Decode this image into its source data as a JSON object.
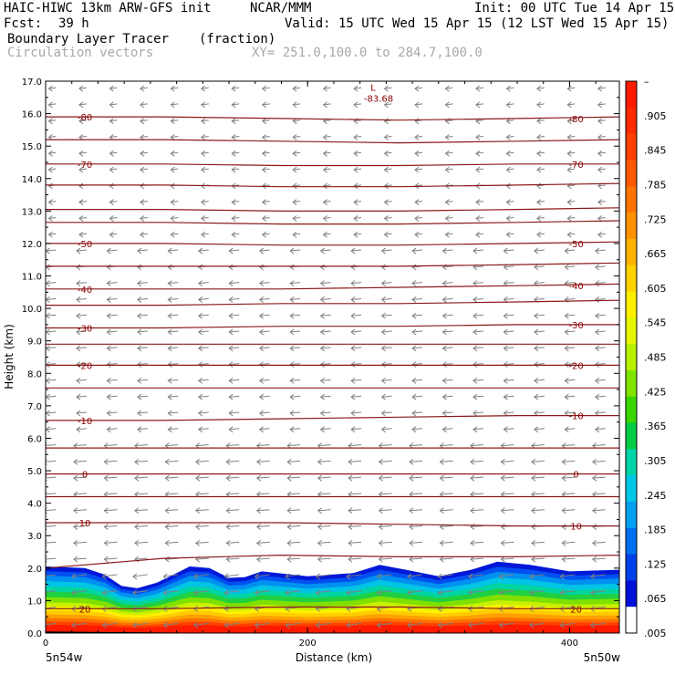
{
  "header": {
    "model": "HAIC-HIWC 13km ARW-GFS init",
    "org": "NCAR/MMM",
    "init": "Init: 00 UTC Tue 14 Apr 15",
    "fcst_label": "Fcst:",
    "fcst_value": "39 h",
    "valid": "Valid: 15 UTC Wed 15 Apr 15 (12 LST Wed 15 Apr 15)",
    "field": "Boundary Layer Tracer",
    "units": "(fraction)",
    "vectors": "Circulation vectors",
    "section": "XY= 251.0,100.0 to 284.7,100.0"
  },
  "chart_data": {
    "type": "heatmap",
    "xlabel": "Distance (km)",
    "ylabel": "Height (km)",
    "xlim": [
      0,
      438
    ],
    "ylim": [
      0.0,
      17.0
    ],
    "x_ticks": [
      0,
      200,
      400
    ],
    "y_ticks": [
      "0.0",
      "1.0",
      "2.0",
      "3.0",
      "4.0",
      "5.0",
      "6.0",
      "7.0",
      "8.0",
      "9.0",
      "10.0",
      "11.0",
      "12.0",
      "13.0",
      "14.0",
      "15.0",
      "16.0",
      "17.0"
    ],
    "x_endpoints": {
      "left": "5n54w",
      "right": "5n50w"
    },
    "colorbar": {
      "labels": [
        "–",
        ".905",
        ".845",
        ".785",
        ".725",
        ".665",
        ".605",
        ".545",
        ".485",
        ".425",
        ".365",
        ".305",
        ".245",
        ".185",
        ".125",
        ".065",
        ".005"
      ],
      "colors": [
        "#ff1a00",
        "#ff2a00",
        "#ff3f00",
        "#ff5800",
        "#ff7400",
        "#ff9200",
        "#ffb200",
        "#ffd200",
        "#ffee00",
        "#e4f500",
        "#b8f000",
        "#7ee400",
        "#3ad600",
        "#00cc44",
        "#00d4a8",
        "#00c8e8",
        "#00a0f0",
        "#0070f0",
        "#0040e8",
        "#0010d8",
        "#ffffff"
      ]
    },
    "tracer_top_km": [
      {
        "x": 0,
        "y": 2.05
      },
      {
        "x": 30,
        "y": 2.0
      },
      {
        "x": 45,
        "y": 1.8
      },
      {
        "x": 58,
        "y": 1.45
      },
      {
        "x": 70,
        "y": 1.38
      },
      {
        "x": 85,
        "y": 1.55
      },
      {
        "x": 100,
        "y": 1.85
      },
      {
        "x": 110,
        "y": 2.05
      },
      {
        "x": 125,
        "y": 2.0
      },
      {
        "x": 140,
        "y": 1.7
      },
      {
        "x": 152,
        "y": 1.72
      },
      {
        "x": 165,
        "y": 1.9
      },
      {
        "x": 200,
        "y": 1.75
      },
      {
        "x": 235,
        "y": 1.85
      },
      {
        "x": 255,
        "y": 2.1
      },
      {
        "x": 275,
        "y": 1.95
      },
      {
        "x": 300,
        "y": 1.75
      },
      {
        "x": 325,
        "y": 1.95
      },
      {
        "x": 345,
        "y": 2.2
      },
      {
        "x": 370,
        "y": 2.1
      },
      {
        "x": 400,
        "y": 1.9
      },
      {
        "x": 438,
        "y": 1.95
      }
    ],
    "temperature_contours_C": [
      {
        "value": -80,
        "label": "-80",
        "y_km": [
          15.9,
          15.9,
          15.85,
          15.8,
          15.85,
          15.9
        ]
      },
      {
        "value": -75,
        "label": "",
        "y_km": [
          15.2,
          15.2,
          15.15,
          15.1,
          15.15,
          15.2
        ]
      },
      {
        "value": -70,
        "label": "-70",
        "y_km": [
          14.45,
          14.45,
          14.4,
          14.4,
          14.45,
          14.45
        ]
      },
      {
        "value": -65,
        "label": "",
        "y_km": [
          13.8,
          13.8,
          13.75,
          13.75,
          13.8,
          13.85
        ]
      },
      {
        "value": -60,
        "label": "",
        "y_km": [
          13.05,
          13.05,
          13.0,
          13.0,
          13.05,
          13.1
        ]
      },
      {
        "value": -55,
        "label": "",
        "y_km": [
          12.65,
          12.65,
          12.6,
          12.6,
          12.65,
          12.7
        ]
      },
      {
        "value": -50,
        "label": "-50",
        "y_km": [
          12.0,
          12.0,
          11.95,
          11.95,
          12.0,
          12.05
        ]
      },
      {
        "value": -45,
        "label": "",
        "y_km": [
          11.3,
          11.3,
          11.3,
          11.3,
          11.35,
          11.4
        ]
      },
      {
        "value": -40,
        "label": "-40",
        "y_km": [
          10.6,
          10.6,
          10.6,
          10.65,
          10.7,
          10.75
        ]
      },
      {
        "value": -35,
        "label": "",
        "y_km": [
          10.1,
          10.1,
          10.15,
          10.15,
          10.2,
          10.25
        ]
      },
      {
        "value": -30,
        "label": "-30",
        "y_km": [
          9.4,
          9.4,
          9.45,
          9.45,
          9.5,
          9.5
        ]
      },
      {
        "value": -25,
        "label": "",
        "y_km": [
          8.9,
          8.9,
          8.9,
          8.9,
          8.9,
          8.9
        ]
      },
      {
        "value": -20,
        "label": "-20",
        "y_km": [
          8.25,
          8.25,
          8.25,
          8.25,
          8.25,
          8.25
        ]
      },
      {
        "value": -15,
        "label": "",
        "y_km": [
          7.55,
          7.55,
          7.55,
          7.55,
          7.55,
          7.55
        ]
      },
      {
        "value": -10,
        "label": "-10",
        "y_km": [
          6.55,
          6.55,
          6.6,
          6.65,
          6.7,
          6.7
        ]
      },
      {
        "value": -5,
        "label": "",
        "y_km": [
          5.7,
          5.7,
          5.7,
          5.7,
          5.7,
          5.7
        ]
      },
      {
        "value": 0,
        "label": "0",
        "y_km": [
          4.9,
          4.9,
          4.9,
          4.9,
          4.9,
          4.9
        ]
      },
      {
        "value": 5,
        "label": "",
        "y_km": [
          4.2,
          4.2,
          4.2,
          4.2,
          4.2,
          4.2
        ]
      },
      {
        "value": 10,
        "label": "10",
        "y_km": [
          3.4,
          3.4,
          3.4,
          3.35,
          3.3,
          3.3
        ]
      },
      {
        "value": 15,
        "label": "",
        "y_km": [
          2.0,
          2.3,
          2.4,
          2.35,
          2.35,
          2.4
        ]
      },
      {
        "value": 20,
        "label": "20",
        "y_km": [
          0.75,
          0.75,
          0.8,
          0.8,
          0.75,
          0.75
        ]
      }
    ],
    "contour_x_km": [
      0,
      90,
      180,
      270,
      360,
      438
    ],
    "low_center": {
      "label": "L",
      "value": "-83.68",
      "x": 250,
      "y": 16.65
    }
  }
}
